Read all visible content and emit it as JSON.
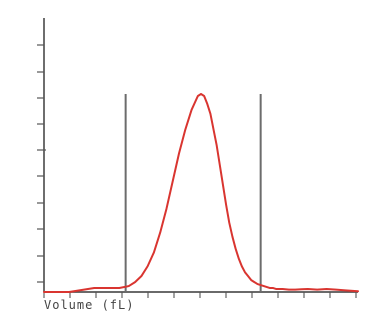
{
  "chart_data": {
    "type": "line",
    "title": "",
    "xlabel": "Volume (fL)",
    "ylabel": "",
    "xlim": [
      0,
      1
    ],
    "ylim": [
      0,
      1
    ],
    "grid": false,
    "legend": "none",
    "series": [
      {
        "x": [
          0.0,
          0.02,
          0.05,
          0.08,
          0.12,
          0.16,
          0.2,
          0.24,
          0.27,
          0.29,
          0.31,
          0.33,
          0.35,
          0.37,
          0.39,
          0.41,
          0.43,
          0.45,
          0.47,
          0.49,
          0.5,
          0.51,
          0.52,
          0.53,
          0.54,
          0.55,
          0.56,
          0.57,
          0.58,
          0.59,
          0.6,
          0.61,
          0.62,
          0.63,
          0.64,
          0.65,
          0.66,
          0.67,
          0.68,
          0.69,
          0.7,
          0.71,
          0.72,
          0.73,
          0.74,
          0.76,
          0.78,
          0.8,
          0.82,
          0.84,
          0.87,
          0.9,
          0.93,
          0.96,
          1.0
        ],
        "y": [
          0.0,
          0.0,
          0.0,
          0.0,
          0.01,
          0.02,
          0.02,
          0.02,
          0.03,
          0.05,
          0.08,
          0.13,
          0.2,
          0.3,
          0.42,
          0.56,
          0.7,
          0.82,
          0.92,
          0.99,
          1.0,
          0.99,
          0.95,
          0.9,
          0.82,
          0.74,
          0.64,
          0.54,
          0.44,
          0.35,
          0.28,
          0.22,
          0.17,
          0.13,
          0.1,
          0.08,
          0.06,
          0.05,
          0.04,
          0.035,
          0.03,
          0.025,
          0.02,
          0.02,
          0.015,
          0.015,
          0.012,
          0.012,
          0.014,
          0.015,
          0.012,
          0.015,
          0.012,
          0.008,
          0.004
        ]
      }
    ],
    "thresholds": [
      0.26,
      0.69
    ],
    "colors": {
      "curve": "#d93530",
      "axis": "#555555",
      "threshold": "#6c6c6c"
    }
  }
}
